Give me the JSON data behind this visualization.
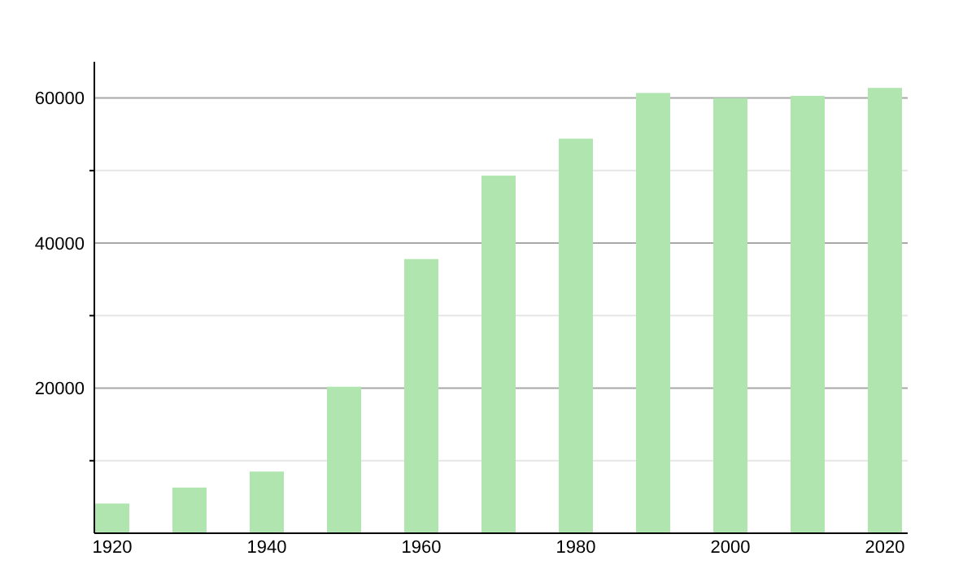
{
  "chart_data": {
    "type": "bar",
    "categories": [
      "1920",
      null,
      "1940",
      null,
      "1960",
      null,
      "1980",
      null,
      "2000",
      null,
      "2020"
    ],
    "values": [
      4100,
      6300,
      8500,
      20200,
      37800,
      49300,
      54400,
      60700,
      60000,
      60300,
      61400
    ],
    "color": "#b1e5b0",
    "ylim": [
      0,
      65000
    ],
    "yticks": [
      {
        "value": 10000,
        "label": null
      },
      20000,
      {
        "value": 30000,
        "label": null
      },
      40000,
      {
        "value": 50000,
        "label": null
      },
      60000
    ],
    "grid": true
  }
}
